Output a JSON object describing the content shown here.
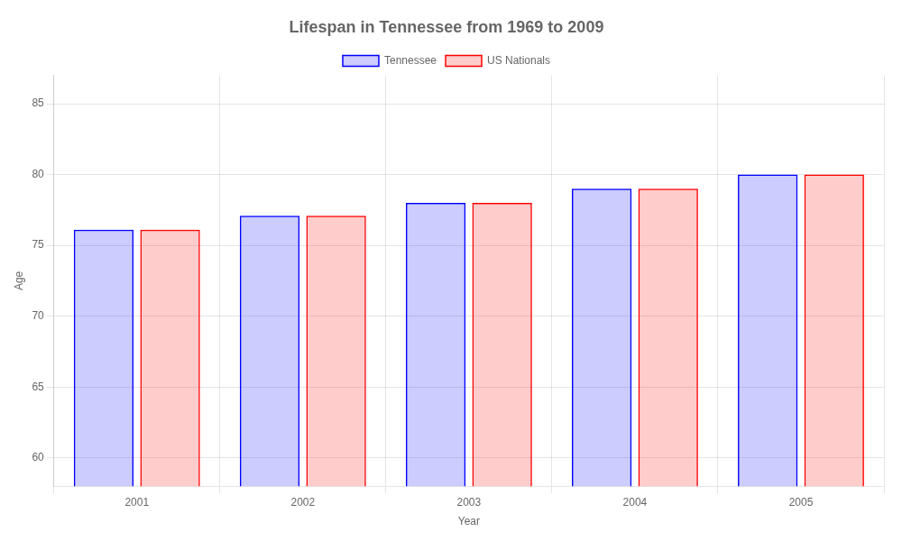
{
  "chart_data": {
    "type": "bar",
    "title": "Lifespan in Tennessee from 1969 to 2009",
    "xlabel": "Year",
    "ylabel": "Age",
    "categories": [
      "2001",
      "2002",
      "2003",
      "2004",
      "2005"
    ],
    "series": [
      {
        "name": "Tennessee",
        "color": "#0000ff",
        "values": [
          76.1,
          77.1,
          78.0,
          79.0,
          80.0
        ]
      },
      {
        "name": "US Nationals",
        "color": "#ff0000",
        "values": [
          76.1,
          77.1,
          78.0,
          79.0,
          80.0
        ]
      }
    ],
    "ylim": [
      58,
      87
    ],
    "yticks": [
      60,
      65,
      70,
      75,
      80,
      85
    ],
    "grid": true,
    "legend": "top"
  }
}
